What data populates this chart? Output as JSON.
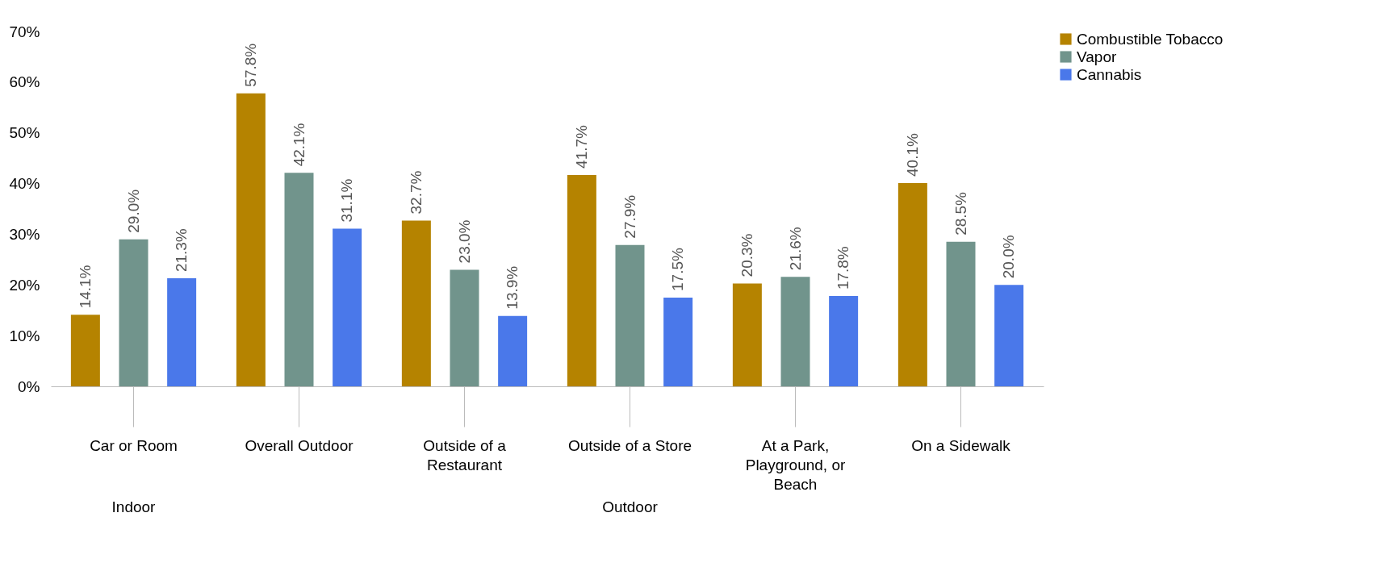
{
  "chart_data": {
    "type": "bar",
    "categories": [
      "Car or Room",
      "Overall Outdoor",
      "Outside of a Restaurant",
      "Outside of a Store",
      "At a Park, Playground, or Beach",
      "On a Sidewalk"
    ],
    "series": [
      {
        "name": "Combustible Tobacco",
        "color": "#b58300",
        "values": [
          14.1,
          57.8,
          32.7,
          41.7,
          20.3,
          40.1
        ],
        "value_labels": [
          "14.1%",
          "57.8%",
          "32.7%",
          "41.7%",
          "20.3%",
          "40.1%"
        ]
      },
      {
        "name": "Vapor",
        "color": "#71948c",
        "values": [
          29.0,
          42.1,
          23.0,
          27.9,
          21.6,
          28.5
        ],
        "value_labels": [
          "29.0%",
          "42.1%",
          "23.0%",
          "27.9%",
          "21.6%",
          "28.5%"
        ]
      },
      {
        "name": "Cannabis",
        "color": "#4a78ea",
        "values": [
          21.3,
          31.1,
          13.9,
          17.5,
          17.8,
          20.0
        ],
        "value_labels": [
          "21.3%",
          "31.1%",
          "13.9%",
          "17.5%",
          "17.8%",
          "20.0%"
        ]
      }
    ],
    "ylim": [
      0,
      70
    ],
    "yticks": [
      {
        "value": 0,
        "label": "0%"
      },
      {
        "value": 10,
        "label": "10%"
      },
      {
        "value": 20,
        "label": "20%"
      },
      {
        "value": 30,
        "label": "30%"
      },
      {
        "value": 40,
        "label": "40%"
      },
      {
        "value": 50,
        "label": "50%"
      },
      {
        "value": 60,
        "label": "60%"
      },
      {
        "value": 70,
        "label": "70%"
      }
    ],
    "annotations": [
      "Indoor",
      "Outdoor"
    ],
    "grid": false,
    "legend": "right"
  }
}
